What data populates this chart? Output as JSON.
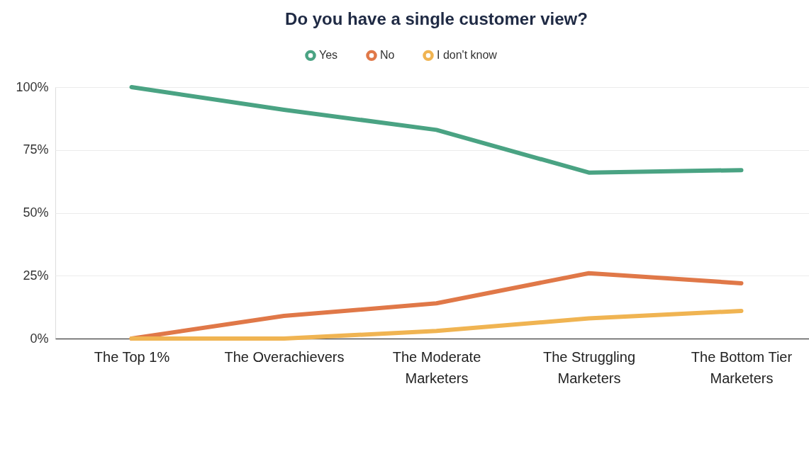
{
  "chart_data": {
    "type": "line",
    "title": "Do you have a single customer view?",
    "categories": [
      "The Top 1%",
      "The Overachievers",
      "The Moderate Marketers",
      "The Struggling Marketers",
      "The Bottom Tier Marketers"
    ],
    "series": [
      {
        "name": "Yes",
        "color": "#4aa383",
        "values": [
          100,
          91,
          83,
          66,
          67
        ]
      },
      {
        "name": "No",
        "color": "#e07848",
        "values": [
          0,
          9,
          14,
          26,
          22
        ]
      },
      {
        "name": "I don't know",
        "color": "#f0b452",
        "values": [
          0,
          0,
          3,
          8,
          11
        ]
      }
    ],
    "ylim": [
      0,
      100
    ],
    "yticks": [
      {
        "value": 0,
        "label": "0%"
      },
      {
        "value": 25,
        "label": "25%"
      },
      {
        "value": 50,
        "label": "50%"
      },
      {
        "value": 75,
        "label": "75%"
      },
      {
        "value": 100,
        "label": "100%"
      }
    ],
    "grid": "y",
    "legend": "top",
    "marker": "none",
    "line_style": "solid"
  }
}
